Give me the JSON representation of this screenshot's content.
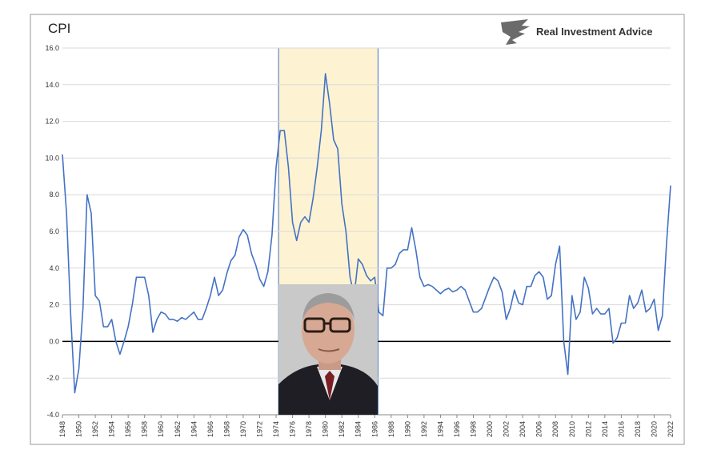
{
  "chart_data": {
    "type": "line",
    "title": "CPI",
    "brand": "Real Investment Advice",
    "xlim": [
      1948,
      2022
    ],
    "ylim": [
      -4,
      16
    ],
    "xticks": [
      1948,
      1950,
      1952,
      1954,
      1956,
      1958,
      1960,
      1962,
      1964,
      1966,
      1968,
      1970,
      1972,
      1974,
      1976,
      1978,
      1980,
      1982,
      1984,
      1986,
      1988,
      1990,
      1992,
      1994,
      1996,
      1998,
      2000,
      2002,
      2004,
      2006,
      2008,
      2010,
      2012,
      2014,
      2016,
      2018,
      2020,
      2022
    ],
    "yticks": [
      {
        "value": -4,
        "label": "-4.0"
      },
      {
        "value": -2,
        "label": "-2.0"
      },
      {
        "value": 0,
        "label": "0.0"
      },
      {
        "value": 2,
        "label": "2.0"
      },
      {
        "value": 4,
        "label": "4.0"
      },
      {
        "value": 6,
        "label": "6.0"
      },
      {
        "value": 8,
        "label": "8.0"
      },
      {
        "value": 10,
        "label": "10.0"
      },
      {
        "value": 12,
        "label": "12.0"
      },
      {
        "value": 14,
        "label": "14.0"
      },
      {
        "value": 16,
        "label": "16.0"
      }
    ],
    "grid": true,
    "zero_line": true,
    "highlight_span": [
      1974.3,
      1986.4
    ],
    "series": [
      {
        "color": "#4472c4",
        "x": [
          1948,
          1948.5,
          1949,
          1949.5,
          1950,
          1950.5,
          1951,
          1951.5,
          1952,
          1952.5,
          1953,
          1953.5,
          1954,
          1954.5,
          1955,
          1955.5,
          1956,
          1956.5,
          1957,
          1957.5,
          1958,
          1958.5,
          1959,
          1959.5,
          1960,
          1960.5,
          1961,
          1961.5,
          1962,
          1962.5,
          1963,
          1963.5,
          1964,
          1964.5,
          1965,
          1965.5,
          1966,
          1966.5,
          1967,
          1967.5,
          1968,
          1968.5,
          1969,
          1969.5,
          1970,
          1970.5,
          1971,
          1971.5,
          1972,
          1972.5,
          1973,
          1973.5,
          1974,
          1974.5,
          1975,
          1975.5,
          1976,
          1976.5,
          1977,
          1977.5,
          1978,
          1978.5,
          1979,
          1979.5,
          1980,
          1980.5,
          1981,
          1981.5,
          1982,
          1982.5,
          1983,
          1983.5,
          1984,
          1984.5,
          1985,
          1985.5,
          1986,
          1986.5,
          1987,
          1987.5,
          1988,
          1988.5,
          1989,
          1989.5,
          1990,
          1990.5,
          1991,
          1991.5,
          1992,
          1992.5,
          1993,
          1993.5,
          1994,
          1994.5,
          1995,
          1995.5,
          1996,
          1996.5,
          1997,
          1997.5,
          1998,
          1998.5,
          1999,
          1999.5,
          2000,
          2000.5,
          2001,
          2001.5,
          2002,
          2002.5,
          2003,
          2003.5,
          2004,
          2004.5,
          2005,
          2005.5,
          2006,
          2006.5,
          2007,
          2007.5,
          2008,
          2008.5,
          2009,
          2009.5,
          2010,
          2010.5,
          2011,
          2011.5,
          2012,
          2012.5,
          2013,
          2013.5,
          2014,
          2014.5,
          2015,
          2015.5,
          2016,
          2016.5,
          2017,
          2017.5,
          2018,
          2018.5,
          2019,
          2019.5,
          2020,
          2020.5,
          2021,
          2021.5,
          2022
        ],
        "values": [
          10.2,
          7,
          1.5,
          -2.8,
          -1.5,
          1.8,
          8,
          7,
          2.5,
          2.2,
          0.8,
          0.8,
          1.2,
          0,
          -0.7,
          0,
          0.8,
          2,
          3.5,
          3.5,
          3.5,
          2.5,
          0.5,
          1.2,
          1.6,
          1.5,
          1.2,
          1.2,
          1.1,
          1.3,
          1.2,
          1.4,
          1.6,
          1.2,
          1.2,
          1.8,
          2.5,
          3.5,
          2.5,
          2.8,
          3.7,
          4.4,
          4.7,
          5.7,
          6.1,
          5.8,
          4.8,
          4.2,
          3.4,
          3.0,
          3.8,
          5.8,
          9.5,
          11.5,
          11.5,
          9.5,
          6.5,
          5.5,
          6.5,
          6.8,
          6.5,
          7.8,
          9.5,
          11.5,
          14.6,
          13.0,
          11.0,
          10.5,
          7.5,
          6.0,
          3.5,
          2.5,
          4.5,
          4.2,
          3.6,
          3.3,
          3.5,
          1.6,
          1.4,
          4.0,
          4.0,
          4.2,
          4.8,
          5.0,
          5.0,
          6.2,
          5.0,
          3.5,
          3.0,
          3.1,
          3.0,
          2.8,
          2.6,
          2.8,
          2.9,
          2.7,
          2.8,
          3.0,
          2.8,
          2.2,
          1.6,
          1.6,
          1.8,
          2.4,
          3.0,
          3.5,
          3.3,
          2.7,
          1.2,
          1.8,
          2.8,
          2.1,
          2.0,
          3.0,
          3.0,
          3.6,
          3.8,
          3.5,
          2.3,
          2.5,
          4.2,
          5.2,
          0.0,
          -1.8,
          2.5,
          1.2,
          1.6,
          3.5,
          2.9,
          1.5,
          1.8,
          1.5,
          1.5,
          1.8,
          -0.1,
          0.2,
          1.0,
          1.0,
          2.5,
          1.8,
          2.1,
          2.8,
          1.6,
          1.8,
          2.3,
          0.6,
          1.4,
          5.3,
          8.5
        ]
      }
    ]
  }
}
